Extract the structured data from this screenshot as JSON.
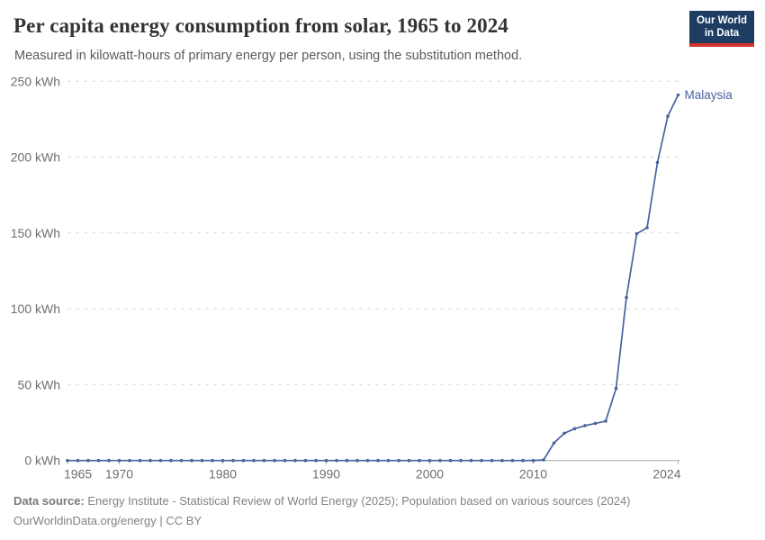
{
  "header": {
    "title": "Per capita energy consumption from solar, 1965 to 2024",
    "subtitle": "Measured in kilowatt-hours of primary energy per person, using the substitution method.",
    "logo": {
      "line1": "Our World",
      "line2": "in Data",
      "bg_color": "#1d3d63",
      "accent_color": "#cf3429"
    }
  },
  "chart_data": {
    "type": "line",
    "title": "Per capita energy consumption from solar, 1965 to 2024",
    "xlabel": "",
    "ylabel": "kWh",
    "x_range": [
      1965,
      2024
    ],
    "ylim": [
      0,
      250
    ],
    "grid": "horizontal-dashed",
    "legend_position": "end-of-line-label",
    "yticks": [
      {
        "value": 0,
        "label": "0 kWh"
      },
      {
        "value": 50,
        "label": "50 kWh"
      },
      {
        "value": 100,
        "label": "100 kWh"
      },
      {
        "value": 150,
        "label": "150 kWh"
      },
      {
        "value": 200,
        "label": "200 kWh"
      },
      {
        "value": 250,
        "label": "250 kWh"
      }
    ],
    "xticks": [
      {
        "value": 1965,
        "label": "1965"
      },
      {
        "value": 1970,
        "label": "1970"
      },
      {
        "value": 1980,
        "label": "1980"
      },
      {
        "value": 1990,
        "label": "1990"
      },
      {
        "value": 2000,
        "label": "2000"
      },
      {
        "value": 2010,
        "label": "2010"
      },
      {
        "value": 2024,
        "label": "2024"
      }
    ],
    "series": [
      {
        "name": "Malaysia",
        "color": "#45639c",
        "x": [
          1965,
          1966,
          1967,
          1968,
          1969,
          1970,
          1971,
          1972,
          1973,
          1974,
          1975,
          1976,
          1977,
          1978,
          1979,
          1980,
          1981,
          1982,
          1983,
          1984,
          1985,
          1986,
          1987,
          1988,
          1989,
          1990,
          1991,
          1992,
          1993,
          1994,
          1995,
          1996,
          1997,
          1998,
          1999,
          2000,
          2001,
          2002,
          2003,
          2004,
          2005,
          2006,
          2007,
          2008,
          2009,
          2010,
          2011,
          2012,
          2013,
          2014,
          2015,
          2016,
          2017,
          2018,
          2019,
          2020,
          2021,
          2022,
          2023,
          2024
        ],
        "values": [
          0,
          0,
          0,
          0,
          0,
          0,
          0,
          0,
          0,
          0,
          0,
          0,
          0,
          0,
          0,
          0,
          0,
          0,
          0,
          0,
          0,
          0,
          0,
          0,
          0,
          0,
          0,
          0,
          0,
          0,
          0,
          0,
          0,
          0,
          0,
          0,
          0,
          0,
          0,
          0,
          0,
          0,
          0,
          0,
          0,
          0,
          0.4,
          11.5,
          18,
          21,
          23,
          24.5,
          26,
          47.5,
          107.5,
          149.5,
          153.5,
          196.5,
          227,
          241
        ]
      }
    ],
    "colors": {
      "gridline": "#dadada",
      "axis_line": "#a9a9a9",
      "tick_text": "#6e6e6e"
    }
  },
  "footer": {
    "source_label": "Data source:",
    "source_text": "Energy Institute - Statistical Review of World Energy (2025); Population based on various sources (2024)",
    "link": "OurWorldinData.org/energy",
    "separator": "|",
    "license": "CC BY"
  }
}
